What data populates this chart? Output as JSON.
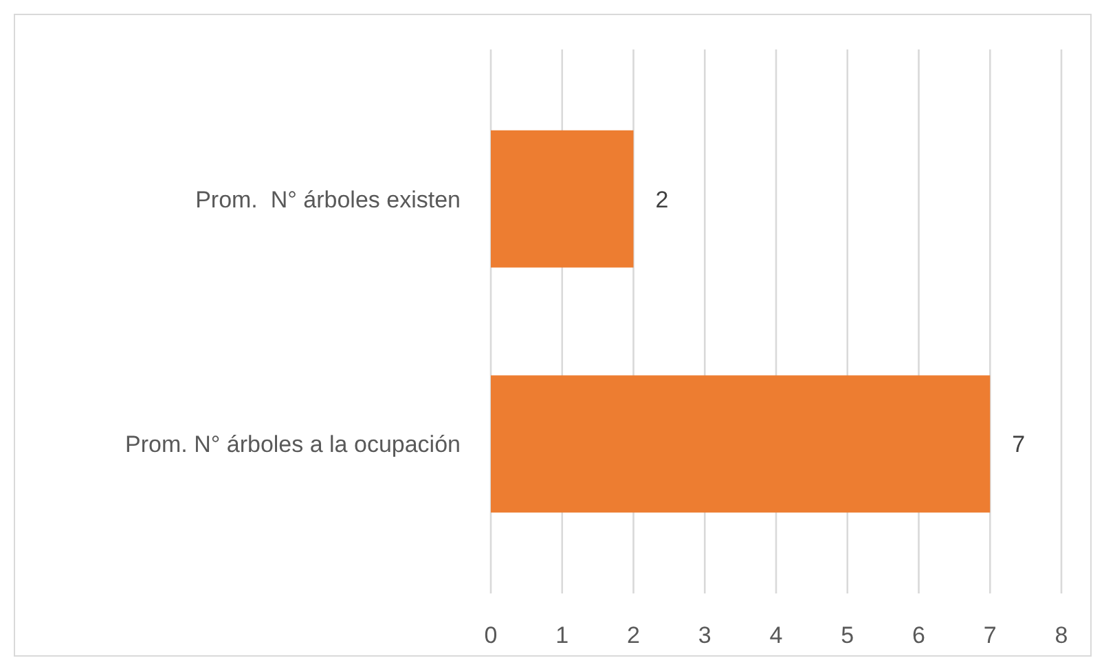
{
  "chart_data": {
    "type": "bar",
    "orientation": "horizontal",
    "categories": [
      "Prom.  N° árboles existen",
      "Prom. N° árboles a la ocupación"
    ],
    "values": [
      2,
      7
    ],
    "color": "#ed7d31",
    "xlim": [
      0,
      8
    ],
    "xticks": [
      0,
      1,
      2,
      3,
      4,
      5,
      6,
      7,
      8
    ],
    "grid": "x",
    "data_labels": true
  }
}
